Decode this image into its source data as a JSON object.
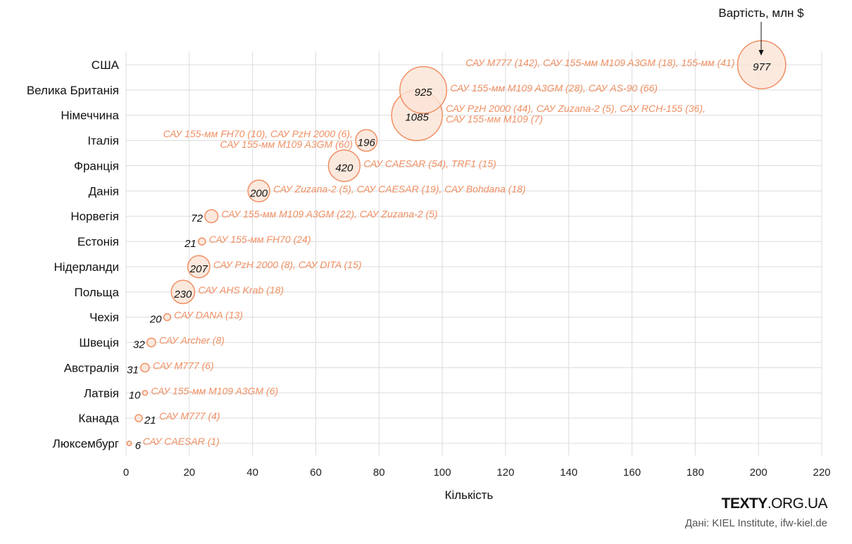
{
  "chart_data": {
    "type": "scatter",
    "xlabel": "Кількість",
    "size_legend": "Вартість, млн $",
    "xlim": [
      0,
      220
    ],
    "xticks": [
      0,
      20,
      40,
      60,
      80,
      100,
      120,
      140,
      160,
      180,
      200,
      220
    ],
    "grid": true,
    "bubble_color": "#ef9064",
    "bubble_fill": "#fbe3d6",
    "points": [
      {
        "country": "США",
        "x": 201,
        "value": 977,
        "note": [
          "САУ M777 (142), САУ 155-мм M109 A3GM (18), 155-мм (41)"
        ]
      },
      {
        "country": "Велика Британія",
        "x": 94,
        "value": 925,
        "note": [
          "САУ 155-мм M109 A3GM (28), САУ AS-90 (66)"
        ]
      },
      {
        "country": "Німеччина",
        "x": 92,
        "value": 1085,
        "note": [
          "САУ PzH 2000 (44), САУ Zuzana-2 (5), САУ RCH-155 (36),",
          "САУ 155-мм M109 (7)"
        ]
      },
      {
        "country": "Італія",
        "x": 76,
        "value": 196,
        "note": [
          "САУ 155-мм FH70 (10), САУ PzH 2000 (6),",
          "САУ 155-мм M109 A3GM (60)"
        ]
      },
      {
        "country": "Франція",
        "x": 69,
        "value": 420,
        "note": [
          "САУ CAESAR (54), TRF1 (15)"
        ]
      },
      {
        "country": "Данія",
        "x": 42,
        "value": 200,
        "note": [
          "САУ Zuzana-2 (5), САУ CAESAR (19), САУ Bohdana (18)"
        ]
      },
      {
        "country": "Норвегія",
        "x": 27,
        "value": 72,
        "note": [
          "САУ 155-мм M109 A3GM (22), САУ Zuzana-2 (5)"
        ]
      },
      {
        "country": "Естонія",
        "x": 24,
        "value": 21,
        "note": [
          "САУ 155-мм FH70 (24)"
        ]
      },
      {
        "country": "Нідерланди",
        "x": 23,
        "value": 207,
        "note": [
          "САУ PzH 2000 (8), САУ DITA (15)"
        ]
      },
      {
        "country": "Польща",
        "x": 18,
        "value": 230,
        "note": [
          "САУ AHS Krab (18)"
        ]
      },
      {
        "country": "Чехія",
        "x": 13,
        "value": 20,
        "note": [
          "САУ DANA (13)"
        ]
      },
      {
        "country": "Швеція",
        "x": 8,
        "value": 32,
        "note": [
          "САУ Archer (8)"
        ]
      },
      {
        "country": "Австралія",
        "x": 6,
        "value": 31,
        "note": [
          "САУ M777 (6)"
        ]
      },
      {
        "country": "Латвія",
        "x": 6,
        "value": 10,
        "note": [
          "САУ 155-мм M109 A3GM (6)"
        ]
      },
      {
        "country": "Канада",
        "x": 4,
        "value": 21,
        "note": [
          "САУ M777 (4)"
        ]
      },
      {
        "country": "Люксембург",
        "x": 1,
        "value": 6,
        "note": [
          "САУ CAESAR (1)"
        ]
      }
    ]
  },
  "footer": {
    "brand_bold": "TEXTY",
    "brand_rest": ".ORG.UA",
    "source": "Дані: KIEL Institute, ifw-kiel.de"
  }
}
